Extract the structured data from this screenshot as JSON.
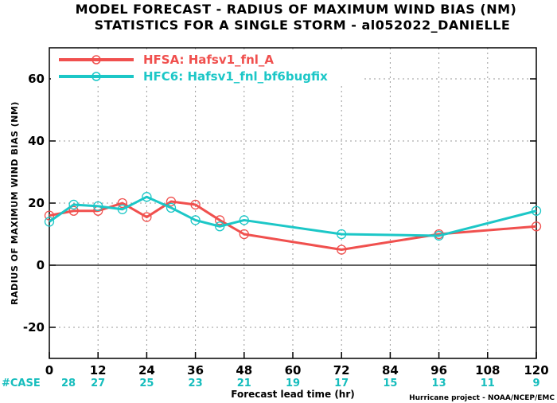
{
  "colors": {
    "hfsa": "#f0504e",
    "hfc6": "#1cc7c7",
    "case": "#16bdbd"
  },
  "chart_data": {
    "type": "line",
    "title": "MODEL FORECAST - RADIUS OF MAXIMUM WIND BIAS (NM)",
    "subtitle": "STATISTICS FOR A SINGLE STORM - al052022_DANIELLE",
    "xlabel": "Forecast lead time (hr)",
    "ylabel": "RADIUS OF MAXIMUM WIND BIAS (NM)",
    "xlim": [
      0,
      120
    ],
    "ylim": [
      -30,
      70
    ],
    "x_ticks": [
      0,
      12,
      24,
      36,
      48,
      60,
      72,
      84,
      96,
      108,
      120
    ],
    "y_ticks": [
      -20,
      0,
      20,
      40,
      60
    ],
    "grid": true,
    "legend_position": "top-left",
    "series": [
      {
        "name": "HFSA: Hafsv1_fnl_A",
        "color": "#f0504e",
        "points": [
          {
            "x": 0,
            "y": 16
          },
          {
            "x": 6,
            "y": 17.5
          },
          {
            "x": 12,
            "y": 17.5
          },
          {
            "x": 18,
            "y": 20
          },
          {
            "x": 24,
            "y": 15.5
          },
          {
            "x": 30,
            "y": 20.5
          },
          {
            "x": 36,
            "y": 19.5
          },
          {
            "x": 42,
            "y": 14.5
          },
          {
            "x": 48,
            "y": 10
          },
          {
            "x": 72,
            "y": 5
          },
          {
            "x": 96,
            "y": 10
          },
          {
            "x": 120,
            "y": 12.5
          }
        ]
      },
      {
        "name": "HFC6: Hafsv1_fnl_bf6bugfix",
        "color": "#1cc7c7",
        "points": [
          {
            "x": 0,
            "y": 14
          },
          {
            "x": 6,
            "y": 19.5
          },
          {
            "x": 12,
            "y": 19
          },
          {
            "x": 18,
            "y": 18
          },
          {
            "x": 24,
            "y": 22
          },
          {
            "x": 30,
            "y": 18.5
          },
          {
            "x": 36,
            "y": 14.5
          },
          {
            "x": 42,
            "y": 12.5
          },
          {
            "x": 48,
            "y": 14.5
          },
          {
            "x": 72,
            "y": 10
          },
          {
            "x": 96,
            "y": 9.5
          },
          {
            "x": 120,
            "y": 17.5
          }
        ]
      }
    ],
    "cases_label": "#CASE",
    "cases": [
      {
        "x": 0,
        "n": "28"
      },
      {
        "x": 12,
        "n": "27"
      },
      {
        "x": 24,
        "n": "25"
      },
      {
        "x": 36,
        "n": "23"
      },
      {
        "x": 48,
        "n": "21"
      },
      {
        "x": 60,
        "n": "19"
      },
      {
        "x": 72,
        "n": "17"
      },
      {
        "x": 84,
        "n": "15"
      },
      {
        "x": 96,
        "n": "13"
      },
      {
        "x": 108,
        "n": "11"
      },
      {
        "x": 120,
        "n": "9"
      }
    ],
    "credit": "Hurricane project - NOAA/NCEP/EMC"
  }
}
